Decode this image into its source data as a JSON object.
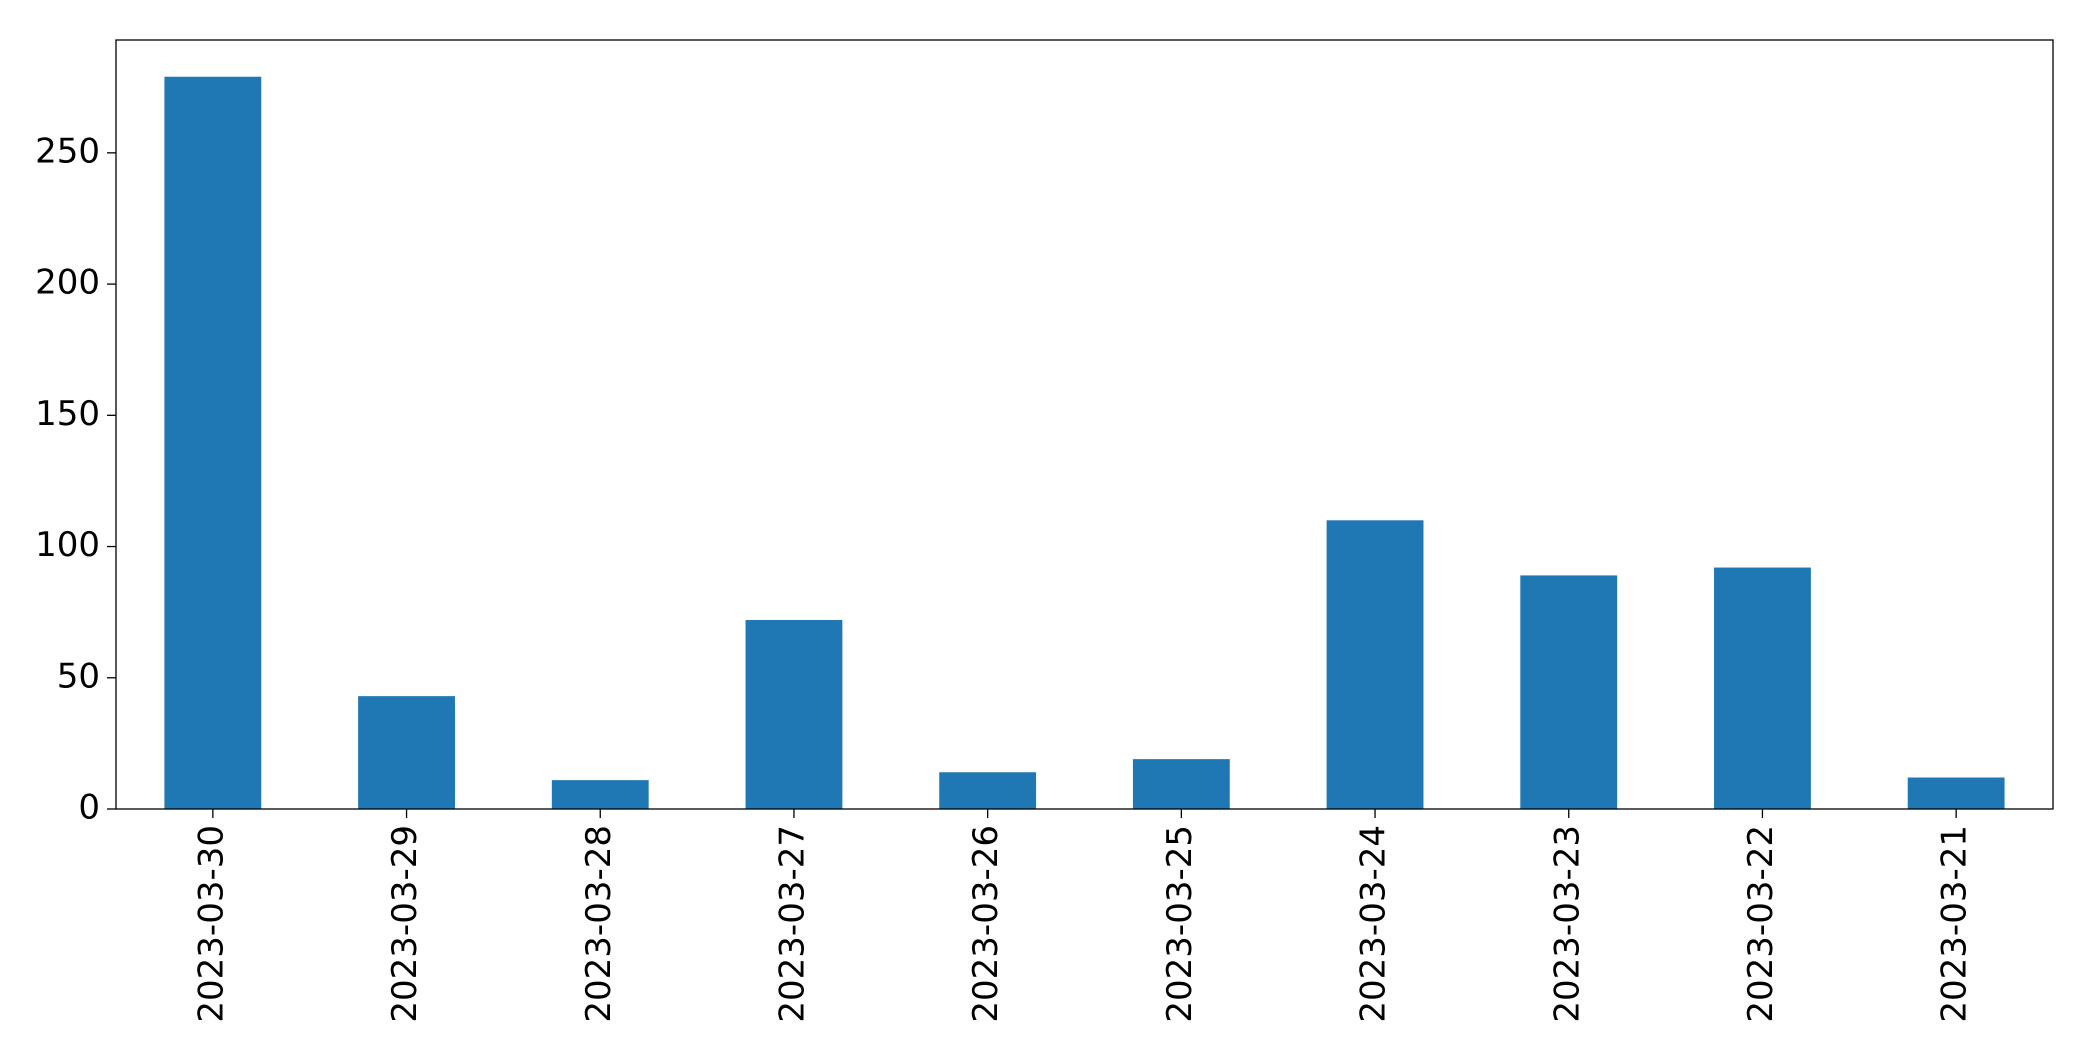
{
  "chart_data": {
    "type": "bar",
    "categories": [
      "2023-03-30",
      "2023-03-29",
      "2023-03-28",
      "2023-03-27",
      "2023-03-26",
      "2023-03-25",
      "2023-03-24",
      "2023-03-23",
      "2023-03-22",
      "2023-03-21"
    ],
    "values": [
      279,
      43,
      11,
      72,
      14,
      19,
      110,
      89,
      92,
      12
    ],
    "color": "#1f77b4",
    "ylim": [
      0,
      293
    ],
    "yticks": [
      0,
      50,
      100,
      150,
      200,
      250
    ],
    "grid": false
  }
}
